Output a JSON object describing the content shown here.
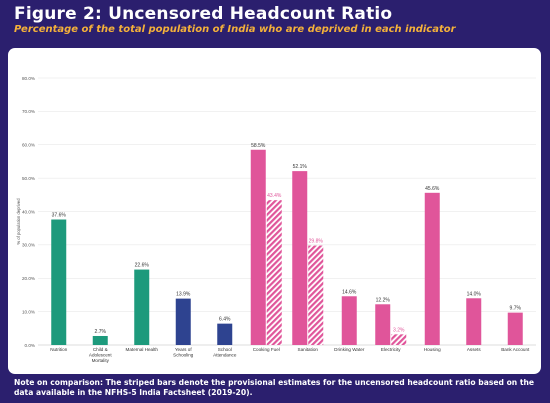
{
  "header": {
    "title": "Figure 2: Uncensored Headcount Ratio",
    "subtitle": "Percentage of the total population of India who are deprived in each indicator"
  },
  "note": "Note on comparison: The striped bars denote the provisional estimates for the uncensored headcount ratio based on the data available in the NFHS-5 India Factsheet (2019-20).",
  "colors": {
    "background": "#2b1f6e",
    "subtitle": "#f4b13a",
    "health": "#1d9a7c",
    "education": "#2e4390",
    "living_standards": "#e0559a",
    "grid": "#e3e3e3"
  },
  "chart_data": {
    "type": "bar",
    "ylabel": "% of population deprived",
    "ylim": [
      0,
      80
    ],
    "yticks": [
      "0.0%",
      "10.0%",
      "20.0%",
      "30.0%",
      "40.0%",
      "50.0%",
      "60.0%",
      "70.0%",
      "80.0%"
    ],
    "grid": true,
    "categories": [
      "Nutrition",
      "Child & Adolescent Mortality",
      "Maternal Health",
      "Years of Schooling",
      "School Attendance",
      "Cooking Fuel",
      "Sanitation",
      "Drinking Water",
      "Electricity",
      "Housing",
      "Assets",
      "Bank Account"
    ],
    "category_lines": [
      [
        "Nutrition"
      ],
      [
        "Child &",
        "Adolescent",
        "Mortality"
      ],
      [
        "Maternal Health"
      ],
      [
        "Years of",
        "Schooling"
      ],
      [
        "School",
        "Attendance"
      ],
      [
        "Cooking Fuel"
      ],
      [
        "Sanitation"
      ],
      [
        "Drinking Water"
      ],
      [
        "Electricity"
      ],
      [
        "Housing"
      ],
      [
        "Assets"
      ],
      [
        "Bank Account"
      ]
    ],
    "groups": [
      "health",
      "health",
      "health",
      "education",
      "education",
      "living_standards",
      "living_standards",
      "living_standards",
      "living_standards",
      "living_standards",
      "living_standards",
      "living_standards"
    ],
    "values": [
      37.6,
      2.7,
      22.6,
      13.9,
      6.4,
      58.5,
      52.1,
      14.6,
      12.2,
      45.6,
      14.0,
      9.7
    ],
    "value_labels": [
      "37.6%",
      "2.7%",
      "22.6%",
      "13.9%",
      "6.4%",
      "58.5%",
      "52.1%",
      "14.6%",
      "12.2%",
      "45.6%",
      "14.0%",
      "9.7%"
    ],
    "striped_series": [
      {
        "category": "Cooking Fuel",
        "value": 43.4,
        "label": "43.4%"
      },
      {
        "category": "Sanitation",
        "value": 29.8,
        "label": "29.8%"
      },
      {
        "category": "Electricity",
        "value": 3.2,
        "label": "3.2%"
      }
    ]
  }
}
